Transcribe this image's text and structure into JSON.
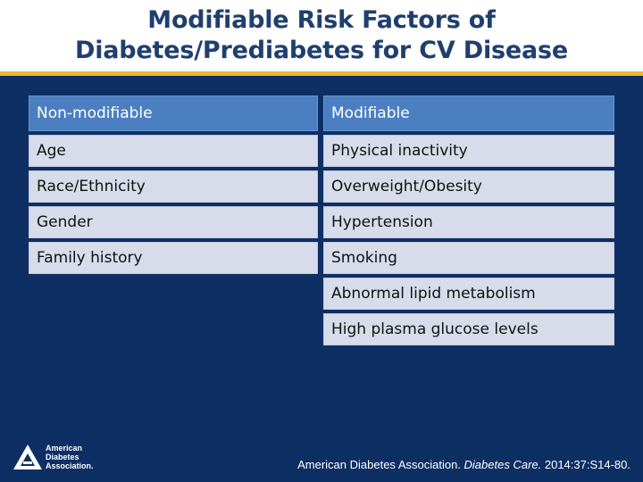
{
  "slide": {
    "title_line1": "Modifiable Risk Factors of",
    "title_line2": "Diabetes/Prediabetes for CV Disease"
  },
  "table": {
    "headers": {
      "left": "Non-modifiable",
      "right": "Modifiable"
    },
    "non_modifiable": [
      "Age",
      "Race/Ethnicity",
      "Gender",
      "Family history"
    ],
    "modifiable": [
      "Physical inactivity",
      "Overweight/Obesity",
      "Hypertension",
      "Smoking",
      "Abnormal lipid metabolism",
      "High plasma glucose levels"
    ]
  },
  "logo": {
    "line1": "American",
    "line2": "Diabetes",
    "line3": "Association."
  },
  "citation": {
    "prefix": "American Diabetes Association. ",
    "journal": "Diabetes Care.",
    "suffix": " 2014:37:S14-80."
  },
  "colors": {
    "title": "#1f3f6e",
    "accent_line": "#e8b63c",
    "background": "#0e2f63",
    "header_cell": "#4b7fc2",
    "body_cell": "#d8dcea"
  }
}
